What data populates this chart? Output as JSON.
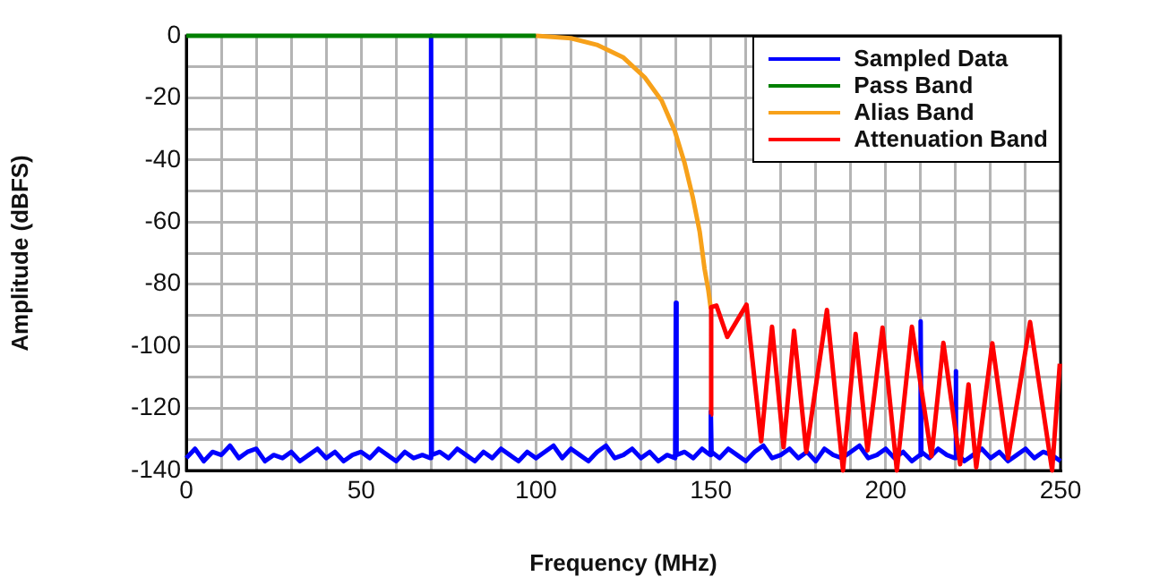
{
  "chart_data": {
    "type": "line",
    "xlabel": "Frequency (MHz)",
    "ylabel": "Amplitude (dBFS)",
    "xlim": [
      0,
      250
    ],
    "ylim": [
      -140,
      0
    ],
    "xticks": [
      0,
      {
        "value": 10,
        "label": null
      },
      {
        "value": 20,
        "label": null
      },
      {
        "value": 30,
        "label": null
      },
      {
        "value": 40,
        "label": null
      },
      50,
      {
        "value": 60,
        "label": null
      },
      {
        "value": 70,
        "label": null
      },
      {
        "value": 80,
        "label": null
      },
      {
        "value": 90,
        "label": null
      },
      100,
      {
        "value": 110,
        "label": null
      },
      {
        "value": 120,
        "label": null
      },
      {
        "value": 130,
        "label": null
      },
      {
        "value": 140,
        "label": null
      },
      150,
      {
        "value": 160,
        "label": null
      },
      {
        "value": 170,
        "label": null
      },
      {
        "value": 180,
        "label": null
      },
      {
        "value": 190,
        "label": null
      },
      200,
      {
        "value": 210,
        "label": null
      },
      {
        "value": 220,
        "label": null
      },
      {
        "value": 230,
        "label": null
      },
      {
        "value": 240,
        "label": null
      },
      250
    ],
    "yticks": [
      -140,
      {
        "value": -130,
        "label": null
      },
      -120,
      {
        "value": -110,
        "label": null
      },
      -100,
      {
        "value": -90,
        "label": null
      },
      -80,
      {
        "value": -70,
        "label": null
      },
      -60,
      {
        "value": -50,
        "label": null
      },
      -40,
      {
        "value": -30,
        "label": null
      },
      -20,
      {
        "value": -10,
        "label": null
      },
      0
    ],
    "grid": true,
    "legend": "top right",
    "series": [
      {
        "name": "Sampled Data",
        "color": "#0000ff",
        "x": [
          0,
          2.5,
          5,
          7.5,
          10,
          12.5,
          15,
          17.5,
          20,
          22.5,
          25,
          27.5,
          30,
          32.5,
          35,
          37.5,
          40,
          42.5,
          45,
          47.5,
          50,
          52.5,
          55,
          57.5,
          60,
          62.5,
          65,
          67.5,
          69.8,
          70,
          70.2,
          72.5,
          75,
          77.5,
          80,
          82.5,
          85,
          87.5,
          90,
          92.5,
          95,
          97.5,
          100,
          102.5,
          105,
          107.5,
          110,
          112.5,
          115,
          117.5,
          120,
          122.5,
          125,
          127.5,
          130,
          132.5,
          135,
          137.5,
          139.8,
          140,
          140.2,
          142.5,
          145,
          147.5,
          149.8,
          150,
          150.2,
          152.5,
          155,
          157.5,
          160,
          162.5,
          165,
          167.5,
          170,
          172.5,
          175,
          177.5,
          180,
          182.5,
          185,
          187.5,
          190,
          192.5,
          195,
          197.5,
          200,
          202.5,
          205,
          207.5,
          209.8,
          210,
          210.2,
          212.5,
          215,
          217.5,
          219.8,
          220,
          220.2,
          222.5,
          225,
          227.5,
          230,
          232.5,
          235,
          237.5,
          240,
          242.5,
          245,
          247.5,
          250
        ],
        "values": [
          -136,
          -133,
          -137,
          -134,
          -135,
          -132,
          -136,
          -134,
          -133,
          -137,
          -135,
          -136,
          -134,
          -137,
          -135,
          -133,
          -136,
          -134,
          -137,
          -135,
          -134,
          -136,
          -133,
          -135,
          -137,
          -134,
          -136,
          -135,
          -136,
          0,
          -135,
          -134,
          -136,
          -133,
          -135,
          -137,
          -134,
          -136,
          -133,
          -135,
          -137,
          -134,
          -136,
          -134,
          -132,
          -136,
          -133,
          -135,
          -137,
          -134,
          -132,
          -136,
          -135,
          -133,
          -136,
          -134,
          -137,
          -135,
          -136,
          -86,
          -135,
          -134,
          -136,
          -133,
          -135,
          -121,
          -134,
          -136,
          -133,
          -135,
          -137,
          -134,
          -132,
          -136,
          -135,
          -133,
          -136,
          -134,
          -137,
          -133,
          -135,
          -136,
          -134,
          -132,
          -136,
          -135,
          -133,
          -136,
          -134,
          -137,
          -135,
          -92,
          -134,
          -136,
          -133,
          -135,
          -136,
          -108,
          -134,
          -137,
          -135,
          -133,
          -136,
          -134,
          -137,
          -135,
          -133,
          -136,
          -134,
          -135,
          -137
        ]
      },
      {
        "name": "Pass Band",
        "color": "#008000",
        "x": [
          0,
          100
        ],
        "values": [
          0,
          0
        ]
      },
      {
        "name": "Alias Band",
        "color": "#f7a11a",
        "x": [
          100,
          110,
          117.4,
          125,
          131.1,
          136,
          139.7,
          142.5,
          144.8,
          146.8,
          148.2,
          149.3,
          150
        ],
        "values": [
          0,
          -0.8,
          -2.9,
          -7,
          -13.4,
          -21,
          -30.7,
          -41,
          -51.8,
          -63,
          -75,
          -82,
          -88
        ]
      },
      {
        "name": "Attenuation Band",
        "color": "#ff0000",
        "x": [
          150,
          150.1,
          151.6,
          154.7,
          160.2,
          164.4,
          167.5,
          170.8,
          173.8,
          177.3,
          183.2,
          187.8,
          191.4,
          194.8,
          199.1,
          203.2,
          207.5,
          213.1,
          216.5,
          221.3,
          223.7,
          225.9,
          230.5,
          235,
          241.3,
          247.6,
          249.8
        ],
        "values": [
          -122,
          -87.4,
          -86.9,
          -97,
          -86.6,
          -130.6,
          -93.7,
          -132.5,
          -95,
          -134,
          -88.3,
          -140,
          -96,
          -133.5,
          -94,
          -140,
          -93.7,
          -135.4,
          -98.9,
          -138,
          -112.3,
          -139,
          -99,
          -136,
          -92.2,
          -140,
          -105.6
        ]
      }
    ]
  }
}
